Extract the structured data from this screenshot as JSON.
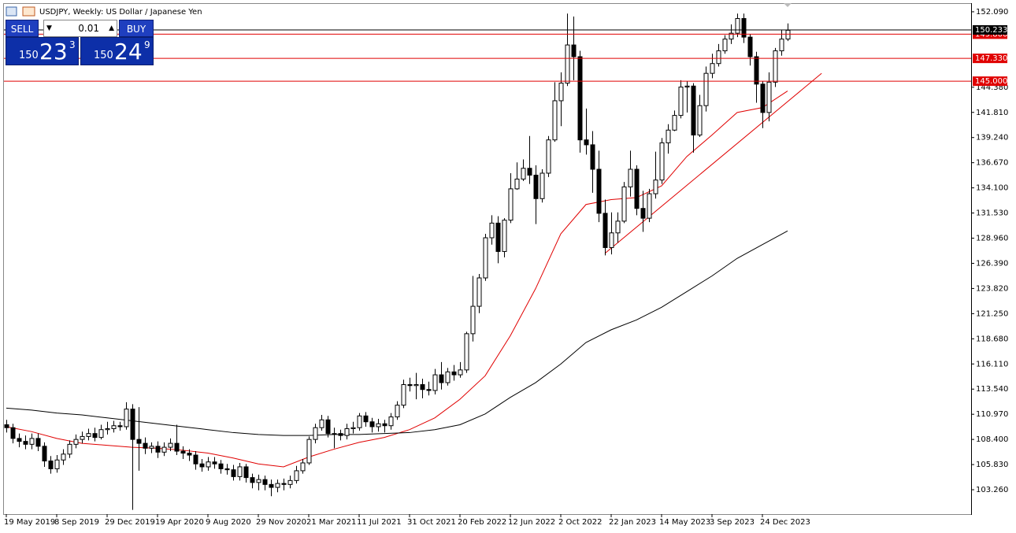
{
  "chart_data": {
    "type": "candlestick",
    "title": "USDJPY, Weekly:  US Dollar / Japanese Yen",
    "categories": [
      "19 May 2019",
      null,
      null,
      null,
      null,
      null,
      null,
      null,
      "8 Sep 2019",
      null,
      null,
      null,
      null,
      null,
      null,
      null,
      "29 Dec 2019",
      null,
      null,
      null,
      null,
      null,
      null,
      null,
      "19 Apr 2020",
      null,
      null,
      null,
      null,
      null,
      null,
      null,
      "9 Aug 2020",
      null,
      null,
      null,
      null,
      null,
      null,
      null,
      "29 Nov 2020",
      null,
      null,
      null,
      null,
      null,
      null,
      null,
      "21 Mar 2021",
      null,
      null,
      null,
      null,
      null,
      null,
      null,
      "11 Jul 2021",
      null,
      null,
      null,
      null,
      null,
      null,
      null,
      "31 Oct 2021",
      null,
      null,
      null,
      null,
      null,
      null,
      null,
      "20 Feb 2022",
      null,
      null,
      null,
      null,
      null,
      null,
      null,
      "12 Jun 2022",
      null,
      null,
      null,
      null,
      null,
      null,
      null,
      "2 Oct 2022",
      null,
      null,
      null,
      null,
      null,
      null,
      null,
      "22 Jan 2023",
      null,
      null,
      null,
      null,
      null,
      null,
      null,
      "14 May 2023",
      null,
      null,
      null,
      null,
      null,
      null,
      null,
      "3 Sep 2023",
      null,
      null,
      null,
      null,
      null,
      null,
      null,
      "24 Dec 2023",
      null,
      null,
      null,
      null
    ],
    "open": [
      109.9,
      109.6,
      108.5,
      108.2,
      107.9,
      108.5,
      107.7,
      106.2,
      105.4,
      106.3,
      106.9,
      107.9,
      108.4,
      108.7,
      109.0,
      108.6,
      109.4,
      109.5,
      109.8,
      109.7,
      111.5,
      108.4,
      108.0,
      107.5,
      107.7,
      107.1,
      107.6,
      108.0,
      107.2,
      107.0,
      106.8,
      105.9,
      105.6,
      106.1,
      105.9,
      105.4,
      105.3,
      104.6,
      105.6,
      104.5,
      104.0,
      104.3,
      103.8,
      103.5,
      103.9,
      103.8,
      104.2,
      105.2,
      106.0,
      108.4,
      109.6,
      110.4,
      109.0,
      109.0,
      108.8,
      109.5,
      109.6,
      110.8,
      110.2,
      109.7,
      110.0,
      109.8,
      110.7,
      111.9,
      114.0,
      113.9,
      114.0,
      113.5,
      113.4,
      115.0,
      114.2,
      115.3,
      115.0,
      115.5,
      119.2,
      122.0,
      124.9,
      129.0,
      130.5,
      127.6,
      130.8,
      134.0,
      135.0,
      136.1,
      135.4,
      133.0,
      135.6,
      139.0,
      143.0,
      144.8,
      148.7,
      147.5,
      139.0,
      138.5,
      136.0,
      131.5,
      128.0,
      129.5,
      130.7,
      134.2,
      136.0,
      132.0,
      131.0,
      133.5,
      134.9,
      138.7,
      140.0,
      141.5,
      144.4,
      144.5,
      139.5,
      142.5,
      145.8,
      146.8,
      148.1,
      149.3,
      149.9,
      151.4,
      149.5,
      147.5,
      144.7,
      141.8,
      144.9,
      148.1,
      149.3
    ],
    "high": [
      110.4,
      110.0,
      109.0,
      108.8,
      109.0,
      109.0,
      108.1,
      106.7,
      106.8,
      107.4,
      108.3,
      108.9,
      109.2,
      109.5,
      109.6,
      109.9,
      110.2,
      110.3,
      110.2,
      112.2,
      112.0,
      111.7,
      108.6,
      108.1,
      108.2,
      108.1,
      108.5,
      109.9,
      107.7,
      107.4,
      107.2,
      106.4,
      106.6,
      106.6,
      106.3,
      105.9,
      105.8,
      106.0,
      105.9,
      104.9,
      104.8,
      104.7,
      104.3,
      104.3,
      104.4,
      104.7,
      105.7,
      106.4,
      108.7,
      110.0,
      110.9,
      110.8,
      109.6,
      109.4,
      110.0,
      110.2,
      111.1,
      111.2,
      110.6,
      110.5,
      110.4,
      111.1,
      112.3,
      114.5,
      114.7,
      115.2,
      114.6,
      114.3,
      115.6,
      116.3,
      115.7,
      116.0,
      116.3,
      119.4,
      125.1,
      125.3,
      129.4,
      131.3,
      131.2,
      131.0,
      135.6,
      136.7,
      137.0,
      139.4,
      136.4,
      136.0,
      139.4,
      144.9,
      145.9,
      151.9,
      151.6,
      148.1,
      142.2,
      139.9,
      137.9,
      132.9,
      131.6,
      131.6,
      134.7,
      137.9,
      136.4,
      133.8,
      134.0,
      137.8,
      139.2,
      140.6,
      142.0,
      145.1,
      145.0,
      144.8,
      143.6,
      146.5,
      147.8,
      148.8,
      149.7,
      150.8,
      151.9,
      151.9,
      149.8,
      148.0,
      145.0,
      145.9,
      148.4,
      150.2,
      150.9
    ],
    "low": [
      109.1,
      108.0,
      107.6,
      107.4,
      107.4,
      107.2,
      105.6,
      104.9,
      105.0,
      105.8,
      106.5,
      107.5,
      108.0,
      108.3,
      108.2,
      108.4,
      108.9,
      109.1,
      109.3,
      109.4,
      101.2,
      105.2,
      106.9,
      107.0,
      106.5,
      106.7,
      107.2,
      106.8,
      106.4,
      106.2,
      105.3,
      105.1,
      105.2,
      105.4,
      104.9,
      104.8,
      104.2,
      104.2,
      104.0,
      103.4,
      103.2,
      103.2,
      102.6,
      103.0,
      103.2,
      103.4,
      103.9,
      104.9,
      105.8,
      108.0,
      109.3,
      108.6,
      107.5,
      108.3,
      108.4,
      109.0,
      109.3,
      109.7,
      109.1,
      109.2,
      109.1,
      109.4,
      110.4,
      111.6,
      113.3,
      112.5,
      112.6,
      112.9,
      113.0,
      113.5,
      113.9,
      114.4,
      114.7,
      115.2,
      118.4,
      121.3,
      124.6,
      128.3,
      126.4,
      127.0,
      130.5,
      133.9,
      134.8,
      134.5,
      130.4,
      132.6,
      135.2,
      138.8,
      140.4,
      144.5,
      145.1,
      137.7,
      137.5,
      133.6,
      130.6,
      127.2,
      127.3,
      128.5,
      130.5,
      133.2,
      131.3,
      129.6,
      130.6,
      133.0,
      134.5,
      137.6,
      139.9,
      141.2,
      141.8,
      137.7,
      139.3,
      141.9,
      145.3,
      146.5,
      147.8,
      148.8,
      149.5,
      148.9,
      146.6,
      142.8,
      140.2,
      140.9,
      144.4,
      147.6,
      149.1
    ],
    "close": [
      109.6,
      108.5,
      108.2,
      107.9,
      108.5,
      107.7,
      106.2,
      105.4,
      106.3,
      106.9,
      107.9,
      108.4,
      108.7,
      109.0,
      108.6,
      109.4,
      109.5,
      109.8,
      109.7,
      111.5,
      108.4,
      108.0,
      107.5,
      107.7,
      107.1,
      107.6,
      108.0,
      107.2,
      107.0,
      106.8,
      105.9,
      105.6,
      106.1,
      105.9,
      105.4,
      105.3,
      104.6,
      105.6,
      104.5,
      104.0,
      104.3,
      103.8,
      103.5,
      103.9,
      103.8,
      104.2,
      105.2,
      106.0,
      108.4,
      109.6,
      110.4,
      109.0,
      109.0,
      108.8,
      109.5,
      109.6,
      110.8,
      110.2,
      109.7,
      110.0,
      109.8,
      110.7,
      111.9,
      114.0,
      113.9,
      114.0,
      113.5,
      113.4,
      115.0,
      114.2,
      115.3,
      115.0,
      115.5,
      119.2,
      122.0,
      124.9,
      129.0,
      130.5,
      127.6,
      130.8,
      134.0,
      135.0,
      136.1,
      135.4,
      133.0,
      135.6,
      139.0,
      143.0,
      144.8,
      148.7,
      147.5,
      139.0,
      138.5,
      136.0,
      131.5,
      128.0,
      129.5,
      130.7,
      134.2,
      136.0,
      132.0,
      131.0,
      133.5,
      134.9,
      138.7,
      140.0,
      141.5,
      144.4,
      144.5,
      139.5,
      142.5,
      145.8,
      146.8,
      148.1,
      149.3,
      149.9,
      151.4,
      149.5,
      147.5,
      144.7,
      141.8,
      144.9,
      148.1,
      149.3,
      150.2
    ],
    "up_color": "#ffffff",
    "down_color": "#000000",
    "outline_color": "#000000",
    "lines": [
      {
        "color": "#e00000",
        "x": [
          0,
          4,
          8,
          12,
          16,
          20,
          24,
          28,
          32,
          36,
          40,
          44,
          48,
          52,
          56,
          60,
          64,
          68,
          72,
          76,
          80,
          84,
          88,
          92,
          96,
          100,
          104,
          108,
          112,
          116,
          120,
          124
        ],
        "values": [
          109.7,
          109.2,
          108.5,
          108.0,
          107.8,
          107.6,
          107.5,
          107.3,
          107.0,
          106.5,
          105.9,
          105.6,
          106.6,
          107.4,
          108.1,
          108.6,
          109.4,
          110.6,
          112.5,
          114.9,
          119.0,
          123.8,
          129.4,
          132.4,
          132.9,
          133.1,
          134.3,
          137.3,
          139.5,
          141.8,
          142.3,
          144.0
        ]
      },
      {
        "color": "#000000",
        "x": [
          0,
          4,
          8,
          12,
          16,
          20,
          24,
          28,
          32,
          36,
          40,
          44,
          48,
          52,
          56,
          60,
          64,
          68,
          72,
          76,
          80,
          84,
          88,
          92,
          96,
          100,
          104,
          108,
          112,
          116,
          120,
          124
        ],
        "values": [
          111.6,
          111.4,
          111.1,
          110.9,
          110.6,
          110.3,
          110.0,
          109.7,
          109.4,
          109.1,
          108.9,
          108.8,
          108.8,
          108.9,
          108.9,
          109.0,
          109.1,
          109.4,
          109.9,
          111.0,
          112.7,
          114.2,
          116.1,
          118.3,
          119.6,
          120.6,
          121.9,
          123.5,
          125.1,
          126.9,
          128.3,
          129.7
        ]
      },
      {
        "color": "#e00000",
        "x": [
          95,
          129.4
        ],
        "values": [
          127.4,
          145.8
        ]
      }
    ],
    "levels": [
      {
        "value": 149.8,
        "label": "149.800",
        "color": "#e00000"
      },
      {
        "value": 147.33,
        "label": "147.330",
        "color": "#e00000"
      },
      {
        "value": 145.0,
        "label": "145.000",
        "color": "#e00000"
      }
    ],
    "current_price": {
      "value": 150.233,
      "label": "150.233",
      "color": "#000000"
    },
    "xlim": [
      -0.375,
      153.125
    ],
    "ylim": [
      100.77,
      152.89
    ],
    "yticks": [
      {
        "value": 152.09,
        "label": "152.090"
      },
      {
        "value": 144.38,
        "label": "144.380"
      },
      {
        "value": 141.81,
        "label": "141.810"
      },
      {
        "value": 139.24,
        "label": "139.240"
      },
      {
        "value": 136.67,
        "label": "136.670"
      },
      {
        "value": 134.1,
        "label": "134.100"
      },
      {
        "value": 131.53,
        "label": "131.530"
      },
      {
        "value": 128.96,
        "label": "128.960"
      },
      {
        "value": 126.39,
        "label": "126.390"
      },
      {
        "value": 123.82,
        "label": "123.820"
      },
      {
        "value": 121.25,
        "label": "121.250"
      },
      {
        "value": 118.68,
        "label": "118.680"
      },
      {
        "value": 116.11,
        "label": "116.110"
      },
      {
        "value": 113.54,
        "label": "113.540"
      },
      {
        "value": 110.97,
        "label": "110.970"
      },
      {
        "value": 108.4,
        "label": "108.400"
      },
      {
        "value": 105.83,
        "label": "105.830"
      },
      {
        "value": 103.26,
        "label": "103.260"
      }
    ],
    "grid": false
  },
  "trade_panel": {
    "sell": "SELL",
    "buy": "BUY",
    "volume": "0.01",
    "bid": {
      "big": "150",
      "main": "23",
      "sup": "3"
    },
    "ask": {
      "big": "150",
      "main": "24",
      "sup": "9"
    }
  }
}
